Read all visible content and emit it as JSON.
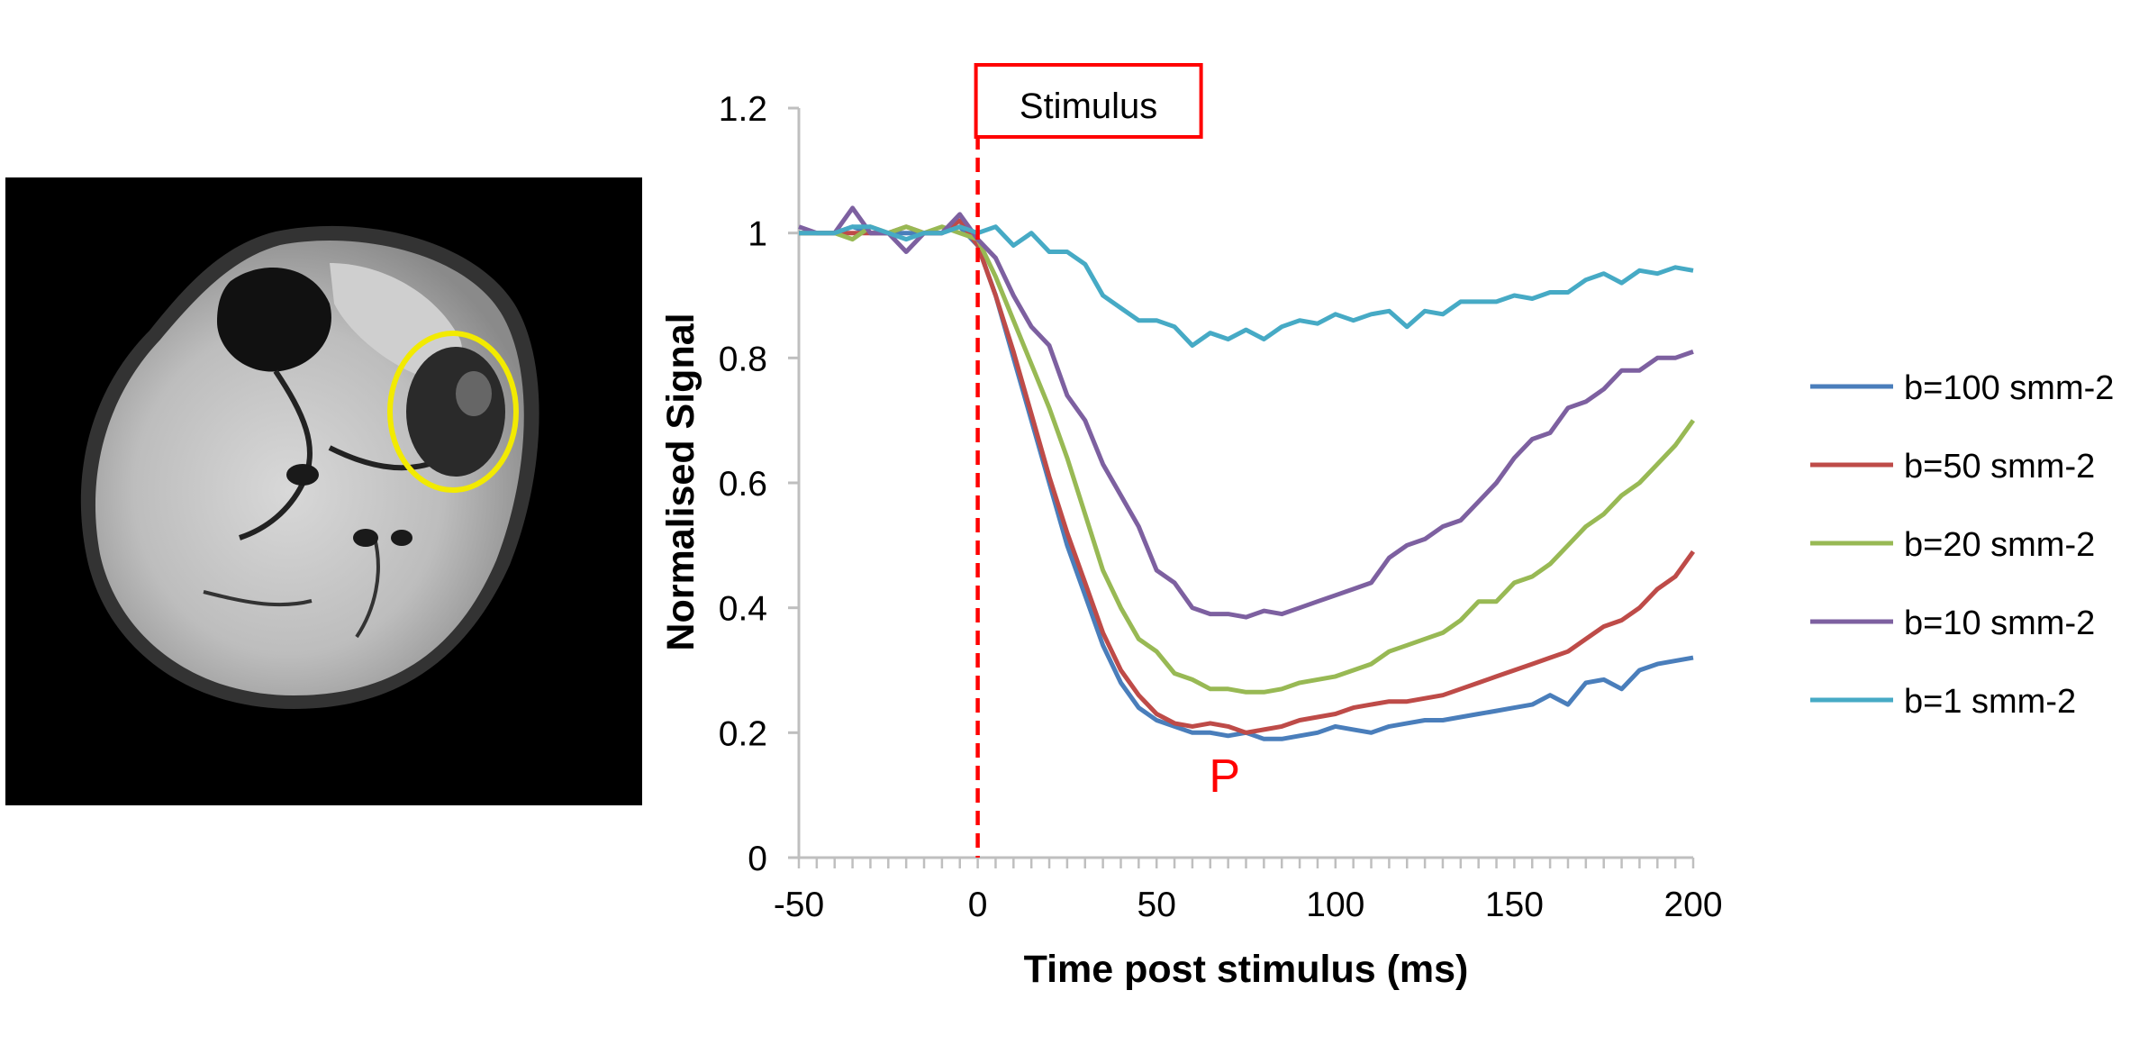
{
  "image_panel": {
    "description_icon": "mri-leg-cross-section-icon",
    "roi_color": "#f2ea00"
  },
  "chart_data": {
    "type": "line",
    "title": "",
    "xlabel": "Time post stimulus (ms)",
    "ylabel": "Normalised Signal",
    "xlim": [
      -50,
      200
    ],
    "ylim": [
      0,
      1.2
    ],
    "xticks": [
      "-50",
      "0",
      "50",
      "100",
      "150",
      "200"
    ],
    "yticks": [
      "0",
      "0.2",
      "0.4",
      "0.6",
      "0.8",
      "1",
      "1.2"
    ],
    "grid": false,
    "legend_position": "right",
    "stimulus": {
      "label": "Stimulus",
      "x": 0,
      "color": "#ff0000"
    },
    "annotation": {
      "text": "P",
      "x": 69,
      "y": 0.12,
      "color": "#ff0000"
    },
    "series": [
      {
        "name": "b=100 smm-2",
        "color": "#4a7ebb",
        "points": [
          [
            -50,
            1.0
          ],
          [
            -45,
            1.0
          ],
          [
            -40,
            1.0
          ],
          [
            -35,
            1.01
          ],
          [
            -30,
            1.0
          ],
          [
            -25,
            1.0
          ],
          [
            -20,
            1.0
          ],
          [
            -15,
            1.0
          ],
          [
            -10,
            1.0
          ],
          [
            -5,
            1.01
          ],
          [
            0,
            0.98
          ],
          [
            5,
            0.9
          ],
          [
            10,
            0.8
          ],
          [
            15,
            0.7
          ],
          [
            20,
            0.6
          ],
          [
            25,
            0.5
          ],
          [
            30,
            0.42
          ],
          [
            35,
            0.34
          ],
          [
            40,
            0.28
          ],
          [
            45,
            0.24
          ],
          [
            50,
            0.22
          ],
          [
            55,
            0.21
          ],
          [
            60,
            0.2
          ],
          [
            65,
            0.2
          ],
          [
            70,
            0.195
          ],
          [
            75,
            0.2
          ],
          [
            80,
            0.19
          ],
          [
            85,
            0.19
          ],
          [
            90,
            0.195
          ],
          [
            95,
            0.2
          ],
          [
            100,
            0.21
          ],
          [
            105,
            0.205
          ],
          [
            110,
            0.2
          ],
          [
            115,
            0.21
          ],
          [
            120,
            0.215
          ],
          [
            125,
            0.22
          ],
          [
            130,
            0.22
          ],
          [
            135,
            0.225
          ],
          [
            140,
            0.23
          ],
          [
            145,
            0.235
          ],
          [
            150,
            0.24
          ],
          [
            155,
            0.245
          ],
          [
            160,
            0.26
          ],
          [
            165,
            0.245
          ],
          [
            170,
            0.28
          ],
          [
            175,
            0.285
          ],
          [
            180,
            0.27
          ],
          [
            185,
            0.3
          ],
          [
            190,
            0.31
          ],
          [
            195,
            0.315
          ],
          [
            200,
            0.32
          ]
        ]
      },
      {
        "name": "b=50 smm-2",
        "color": "#be4b48",
        "points": [
          [
            -50,
            1.0
          ],
          [
            -45,
            1.0
          ],
          [
            -40,
            1.0
          ],
          [
            -35,
            1.0
          ],
          [
            -30,
            1.0
          ],
          [
            -25,
            1.0
          ],
          [
            -20,
            1.01
          ],
          [
            -15,
            1.0
          ],
          [
            -10,
            1.0
          ],
          [
            -5,
            1.02
          ],
          [
            0,
            0.98
          ],
          [
            5,
            0.9
          ],
          [
            10,
            0.81
          ],
          [
            15,
            0.71
          ],
          [
            20,
            0.61
          ],
          [
            25,
            0.52
          ],
          [
            30,
            0.44
          ],
          [
            35,
            0.36
          ],
          [
            40,
            0.3
          ],
          [
            45,
            0.26
          ],
          [
            50,
            0.23
          ],
          [
            55,
            0.215
          ],
          [
            60,
            0.21
          ],
          [
            65,
            0.215
          ],
          [
            70,
            0.21
          ],
          [
            75,
            0.2
          ],
          [
            80,
            0.205
          ],
          [
            85,
            0.21
          ],
          [
            90,
            0.22
          ],
          [
            95,
            0.225
          ],
          [
            100,
            0.23
          ],
          [
            105,
            0.24
          ],
          [
            110,
            0.245
          ],
          [
            115,
            0.25
          ],
          [
            120,
            0.25
          ],
          [
            125,
            0.255
          ],
          [
            130,
            0.26
          ],
          [
            135,
            0.27
          ],
          [
            140,
            0.28
          ],
          [
            145,
            0.29
          ],
          [
            150,
            0.3
          ],
          [
            155,
            0.31
          ],
          [
            160,
            0.32
          ],
          [
            165,
            0.33
          ],
          [
            170,
            0.35
          ],
          [
            175,
            0.37
          ],
          [
            180,
            0.38
          ],
          [
            185,
            0.4
          ],
          [
            190,
            0.43
          ],
          [
            195,
            0.45
          ],
          [
            200,
            0.49
          ]
        ]
      },
      {
        "name": "b=20 smm-2",
        "color": "#98b954",
        "points": [
          [
            -50,
            1.0
          ],
          [
            -45,
            1.0
          ],
          [
            -40,
            1.0
          ],
          [
            -35,
            0.99
          ],
          [
            -30,
            1.01
          ],
          [
            -25,
            1.0
          ],
          [
            -20,
            1.01
          ],
          [
            -15,
            1.0
          ],
          [
            -10,
            1.01
          ],
          [
            -5,
            1.0
          ],
          [
            0,
            0.99
          ],
          [
            5,
            0.93
          ],
          [
            10,
            0.86
          ],
          [
            15,
            0.79
          ],
          [
            20,
            0.72
          ],
          [
            25,
            0.64
          ],
          [
            30,
            0.55
          ],
          [
            35,
            0.46
          ],
          [
            40,
            0.4
          ],
          [
            45,
            0.35
          ],
          [
            50,
            0.33
          ],
          [
            55,
            0.295
          ],
          [
            60,
            0.285
          ],
          [
            65,
            0.27
          ],
          [
            70,
            0.27
          ],
          [
            75,
            0.265
          ],
          [
            80,
            0.265
          ],
          [
            85,
            0.27
          ],
          [
            90,
            0.28
          ],
          [
            95,
            0.285
          ],
          [
            100,
            0.29
          ],
          [
            105,
            0.3
          ],
          [
            110,
            0.31
          ],
          [
            115,
            0.33
          ],
          [
            120,
            0.34
          ],
          [
            125,
            0.35
          ],
          [
            130,
            0.36
          ],
          [
            135,
            0.38
          ],
          [
            140,
            0.41
          ],
          [
            145,
            0.41
          ],
          [
            150,
            0.44
          ],
          [
            155,
            0.45
          ],
          [
            160,
            0.47
          ],
          [
            165,
            0.5
          ],
          [
            170,
            0.53
          ],
          [
            175,
            0.55
          ],
          [
            180,
            0.58
          ],
          [
            185,
            0.6
          ],
          [
            190,
            0.63
          ],
          [
            195,
            0.66
          ],
          [
            200,
            0.7
          ]
        ]
      },
      {
        "name": "b=10 smm-2",
        "color": "#7d60a0",
        "points": [
          [
            -50,
            1.01
          ],
          [
            -45,
            1.0
          ],
          [
            -40,
            1.0
          ],
          [
            -35,
            1.04
          ],
          [
            -30,
            1.0
          ],
          [
            -25,
            1.0
          ],
          [
            -20,
            0.97
          ],
          [
            -15,
            1.0
          ],
          [
            -10,
            1.0
          ],
          [
            -5,
            1.03
          ],
          [
            0,
            0.99
          ],
          [
            5,
            0.96
          ],
          [
            10,
            0.9
          ],
          [
            15,
            0.85
          ],
          [
            20,
            0.82
          ],
          [
            25,
            0.74
          ],
          [
            30,
            0.7
          ],
          [
            35,
            0.63
          ],
          [
            40,
            0.58
          ],
          [
            45,
            0.53
          ],
          [
            50,
            0.46
          ],
          [
            55,
            0.44
          ],
          [
            60,
            0.4
          ],
          [
            65,
            0.39
          ],
          [
            70,
            0.39
          ],
          [
            75,
            0.385
          ],
          [
            80,
            0.395
          ],
          [
            85,
            0.39
          ],
          [
            90,
            0.4
          ],
          [
            95,
            0.41
          ],
          [
            100,
            0.42
          ],
          [
            105,
            0.43
          ],
          [
            110,
            0.44
          ],
          [
            115,
            0.48
          ],
          [
            120,
            0.5
          ],
          [
            125,
            0.51
          ],
          [
            130,
            0.53
          ],
          [
            135,
            0.54
          ],
          [
            140,
            0.57
          ],
          [
            145,
            0.6
          ],
          [
            150,
            0.64
          ],
          [
            155,
            0.67
          ],
          [
            160,
            0.68
          ],
          [
            165,
            0.72
          ],
          [
            170,
            0.73
          ],
          [
            175,
            0.75
          ],
          [
            180,
            0.78
          ],
          [
            185,
            0.78
          ],
          [
            190,
            0.8
          ],
          [
            195,
            0.8
          ],
          [
            200,
            0.81
          ]
        ]
      },
      {
        "name": "b=1 smm-2",
        "color": "#46aac5",
        "points": [
          [
            -50,
            1.0
          ],
          [
            -45,
            1.0
          ],
          [
            -40,
            1.0
          ],
          [
            -35,
            1.01
          ],
          [
            -30,
            1.01
          ],
          [
            -25,
            1.0
          ],
          [
            -20,
            0.99
          ],
          [
            -15,
            1.0
          ],
          [
            -10,
            1.0
          ],
          [
            -5,
            1.01
          ],
          [
            0,
            1.0
          ],
          [
            5,
            1.01
          ],
          [
            10,
            0.98
          ],
          [
            15,
            1.0
          ],
          [
            20,
            0.97
          ],
          [
            25,
            0.97
          ],
          [
            30,
            0.95
          ],
          [
            35,
            0.9
          ],
          [
            40,
            0.88
          ],
          [
            45,
            0.86
          ],
          [
            50,
            0.86
          ],
          [
            55,
            0.85
          ],
          [
            60,
            0.82
          ],
          [
            65,
            0.84
          ],
          [
            70,
            0.83
          ],
          [
            75,
            0.845
          ],
          [
            80,
            0.83
          ],
          [
            85,
            0.85
          ],
          [
            90,
            0.86
          ],
          [
            95,
            0.855
          ],
          [
            100,
            0.87
          ],
          [
            105,
            0.86
          ],
          [
            110,
            0.87
          ],
          [
            115,
            0.875
          ],
          [
            120,
            0.85
          ],
          [
            125,
            0.875
          ],
          [
            130,
            0.87
          ],
          [
            135,
            0.89
          ],
          [
            140,
            0.89
          ],
          [
            145,
            0.89
          ],
          [
            150,
            0.9
          ],
          [
            155,
            0.895
          ],
          [
            160,
            0.905
          ],
          [
            165,
            0.905
          ],
          [
            170,
            0.925
          ],
          [
            175,
            0.935
          ],
          [
            180,
            0.92
          ],
          [
            185,
            0.94
          ],
          [
            190,
            0.935
          ],
          [
            195,
            0.945
          ],
          [
            200,
            0.94
          ]
        ]
      }
    ]
  }
}
